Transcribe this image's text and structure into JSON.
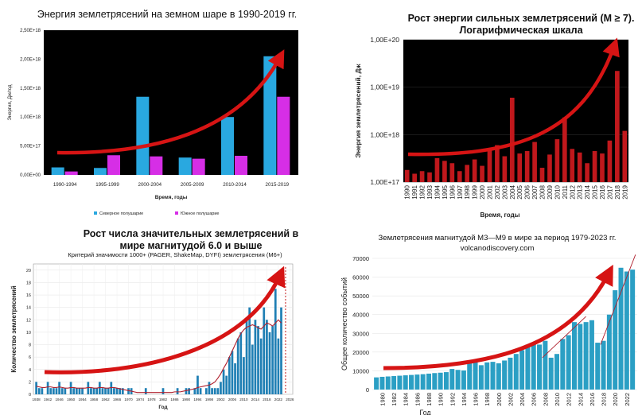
{
  "chart_data": [
    {
      "type": "bar",
      "title": "Энергия землетрясений на земном шаре в 1990-2019 гг.",
      "xlabel": "Время, годы",
      "ylabel": "Энергия, Дж/год",
      "categories": [
        "1990-1994",
        "1995-1999",
        "2000-2004",
        "2005-2009",
        "2010-2014",
        "2015-2019"
      ],
      "series": [
        {
          "name": "Северное полушарие",
          "values": [
            1.3e+17,
            1.2e+17,
            1.35e+18,
            3e+17,
            1e+18,
            2.05e+18
          ]
        },
        {
          "name": "Южное полушарие",
          "values": [
            6e+16,
            3.4e+17,
            3.2e+17,
            2.8e+17,
            3.3e+17,
            1.35e+18
          ]
        }
      ],
      "y_ticks": [
        "0,00E+00",
        "5,00E+17",
        "1,00E+18",
        "1,50E+18",
        "2,00E+18",
        "2,50E+18"
      ],
      "ylim": [
        0,
        2.5e+18
      ],
      "colors": {
        "north": "#29a8e0",
        "south": "#d62ee6",
        "background": "#000000",
        "arrow": "#d61414"
      }
    },
    {
      "type": "bar",
      "title": "Рост энергии сильных землетрясений (M ≥ 7). Логарифмическая шкала",
      "xlabel": "Время, годы",
      "ylabel": "Энергия землетрясений, Дж",
      "scale": "log",
      "ylim": [
        1e+17,
        1e+20
      ],
      "y_ticks": [
        "1,00E+17",
        "1,00E+18",
        "1,00E+19",
        "1,00E+20"
      ],
      "categories": [
        "1990",
        "1991",
        "1992",
        "1993",
        "1994",
        "1995",
        "1996",
        "1997",
        "1998",
        "1999",
        "2000",
        "2001",
        "2002",
        "2003",
        "2004",
        "2005",
        "2006",
        "2007",
        "2008",
        "2009",
        "2010",
        "2011",
        "2012",
        "2013",
        "2014",
        "2015",
        "2016",
        "2017",
        "2018",
        "2019"
      ],
      "values": [
        1.8e+17,
        1.5e+17,
        1.7e+17,
        1.6e+17,
        3.2e+17,
        2.8e+17,
        2.5e+17,
        1.7e+17,
        2.3e+17,
        3e+17,
        2.2e+17,
        5e+17,
        6e+17,
        3.5e+17,
        6e+18,
        4e+17,
        4.5e+17,
        7e+17,
        2e+17,
        3.8e+17,
        8e+17,
        2.3e+18,
        5e+17,
        4.2e+17,
        2.5e+17,
        4.5e+17,
        4e+17,
        7.5e+17,
        2.2e+19,
        1.2e+18
      ],
      "colors": {
        "bars": "#c0181c",
        "background": "#000000",
        "arrow": "#d61414"
      }
    },
    {
      "type": "bar",
      "title": "Рост числа значительных землетрясений в мире магнитудой 6.0 и выше",
      "subtitle": "Критерий значимости 1000+ (PAGER, ShakeMap, DYFI) землетрясения (M6+)",
      "xlabel": "Год",
      "ylabel": "Количество землетрясений",
      "ylim": [
        0,
        21
      ],
      "y_ticks": [
        "0",
        "2",
        "4",
        "6",
        "8",
        "10",
        "12",
        "14",
        "16",
        "18",
        "20"
      ],
      "x_ticks": [
        "1938",
        "1942",
        "1946",
        "1950",
        "1954",
        "1958",
        "1962",
        "1966",
        "1970",
        "1974",
        "1978",
        "1982",
        "1986",
        "1990",
        "1994",
        "1998",
        "2002",
        "2006",
        "2010",
        "2014",
        "2018",
        "2022",
        "2026"
      ],
      "x": [
        1938,
        1939,
        1940,
        1941,
        1942,
        1943,
        1944,
        1945,
        1946,
        1947,
        1948,
        1949,
        1950,
        1951,
        1952,
        1953,
        1954,
        1955,
        1956,
        1957,
        1958,
        1959,
        1960,
        1961,
        1962,
        1963,
        1964,
        1965,
        1966,
        1967,
        1968,
        1969,
        1970,
        1971,
        1972,
        1973,
        1974,
        1975,
        1976,
        1977,
        1978,
        1979,
        1980,
        1981,
        1982,
        1983,
        1984,
        1985,
        1986,
        1987,
        1988,
        1989,
        1990,
        1991,
        1992,
        1993,
        1994,
        1995,
        1996,
        1997,
        1998,
        1999,
        2000,
        2001,
        2002,
        2003,
        2004,
        2005,
        2006,
        2007,
        2008,
        2009,
        2010,
        2011,
        2012,
        2013,
        2014,
        2015,
        2016,
        2017,
        2018,
        2019,
        2020,
        2021,
        2022,
        2023
      ],
      "values": [
        2,
        1,
        1,
        0,
        2,
        1,
        1,
        1,
        2,
        1,
        1,
        0,
        2,
        1,
        1,
        1,
        1,
        0,
        2,
        1,
        1,
        1,
        2,
        1,
        1,
        1,
        2,
        1,
        1,
        1,
        1,
        0,
        1,
        1,
        0,
        0,
        0,
        0,
        1,
        0,
        0,
        0,
        0,
        0,
        1,
        0,
        0,
        0,
        0,
        1,
        0,
        0,
        1,
        1,
        0,
        1,
        3,
        1,
        0,
        1,
        2,
        1,
        1,
        1,
        2,
        4,
        3,
        6,
        7,
        5,
        9,
        10,
        6,
        12,
        14,
        8,
        12,
        11,
        9,
        14,
        12,
        10,
        11,
        17,
        9,
        14
      ],
      "trend": [
        1.3,
        1.2,
        1.1,
        1.1,
        1.2,
        1.2,
        1.1,
        1.1,
        1.2,
        1.1,
        1.0,
        1.0,
        1.1,
        1.1,
        1.0,
        1.0,
        1.0,
        1.0,
        1.1,
        1.1,
        1.0,
        1.0,
        1.1,
        1.1,
        1.0,
        1.0,
        1.1,
        1.1,
        1.0,
        0.9,
        0.8,
        0.7,
        0.6,
        0.5,
        0.4,
        0.3,
        0.3,
        0.3,
        0.3,
        0.3,
        0.3,
        0.3,
        0.3,
        0.3,
        0.3,
        0.3,
        0.3,
        0.3,
        0.4,
        0.4,
        0.4,
        0.5,
        0.6,
        0.7,
        0.8,
        0.9,
        1.1,
        1.2,
        1.3,
        1.4,
        1.5,
        1.7,
        2.0,
        2.6,
        3.3,
        4.2,
        5.0,
        6.0,
        7.0,
        8.0,
        9.0,
        9.8,
        10.4,
        10.8,
        11.0,
        11.2,
        11.0,
        10.7,
        10.5,
        11.0,
        11.5,
        11.3,
        11.0,
        11.5,
        12.0,
        11.5
      ],
      "colors": {
        "bars": "#1f7fb4",
        "trend": "#b0202e",
        "marker": "#c41a1a",
        "arrow": "#d61414"
      }
    },
    {
      "type": "bar",
      "title": "Землетрясения магнитудой М3—М9 в мире за период 1979-2023 гг.",
      "subtitle": "volcanodiscovery.com",
      "xlabel": "Год",
      "ylabel": "Общее количество событий",
      "ylim": [
        0,
        70000
      ],
      "y_ticks": [
        "0",
        "10000",
        "20000",
        "30000",
        "40000",
        "50000",
        "60000",
        "70000"
      ],
      "x_ticks": [
        "1980",
        "1982",
        "1984",
        "1986",
        "1988",
        "1990",
        "1992",
        "1994",
        "1996",
        "1998",
        "2000",
        "2002",
        "2004",
        "2006",
        "2008",
        "2010",
        "2012",
        "2014",
        "2016",
        "2018",
        "2020",
        "2022"
      ],
      "x": [
        1979,
        1980,
        1981,
        1982,
        1983,
        1984,
        1985,
        1986,
        1987,
        1988,
        1989,
        1990,
        1991,
        1992,
        1993,
        1994,
        1995,
        1996,
        1997,
        1998,
        1999,
        2000,
        2001,
        2002,
        2003,
        2004,
        2005,
        2006,
        2007,
        2008,
        2009,
        2010,
        2011,
        2012,
        2013,
        2014,
        2015,
        2016,
        2017,
        2018,
        2019,
        2020,
        2021,
        2022,
        2023
      ],
      "values": [
        6500,
        6800,
        7000,
        7200,
        7400,
        7600,
        7800,
        8000,
        8200,
        8500,
        8800,
        9000,
        9300,
        11000,
        10500,
        10200,
        14000,
        15000,
        13000,
        14500,
        14800,
        14000,
        15500,
        17000,
        19000,
        21000,
        24000,
        25000,
        24000,
        26000,
        17000,
        19000,
        27000,
        29000,
        36000,
        35000,
        36000,
        37000,
        25000,
        26000,
        40000,
        53000,
        65000,
        63000,
        64000
      ],
      "colors": {
        "bars": "#2b9fc4",
        "arrow": "#d61414",
        "trend": "#b0202e"
      }
    }
  ]
}
